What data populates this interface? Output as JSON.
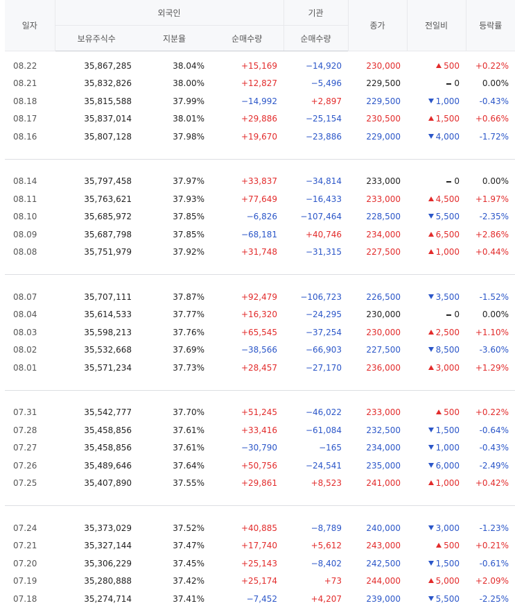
{
  "header": {
    "date": "일자",
    "foreign": "외국인",
    "institution": "기관",
    "holdings": "보유주식수",
    "ratio": "지분율",
    "foreign_net": "순매수량",
    "inst_net": "순매수량",
    "close": "종가",
    "change": "전일비",
    "rate": "등락률"
  },
  "colors": {
    "up": "#e22b2b",
    "down": "#2b56c8",
    "flat": "#222222"
  },
  "groups": [
    [
      {
        "date": "08.22",
        "holdings": "35,867,285",
        "ratio": "38.04%",
        "fnet": "+15,169",
        "inet": "−14,920",
        "close": "230,000",
        "dir": "up",
        "change": "500",
        "rate": "+0.22%"
      },
      {
        "date": "08.21",
        "holdings": "35,832,826",
        "ratio": "38.00%",
        "fnet": "+12,827",
        "inet": "−5,496",
        "close": "229,500",
        "dir": "flat",
        "change": "0",
        "rate": "0.00%"
      },
      {
        "date": "08.18",
        "holdings": "35,815,588",
        "ratio": "37.99%",
        "fnet": "−14,992",
        "inet": "+2,897",
        "close": "229,500",
        "dir": "dn",
        "change": "1,000",
        "rate": "-0.43%"
      },
      {
        "date": "08.17",
        "holdings": "35,837,014",
        "ratio": "38.01%",
        "fnet": "+29,886",
        "inet": "−25,154",
        "close": "230,500",
        "dir": "up",
        "change": "1,500",
        "rate": "+0.66%"
      },
      {
        "date": "08.16",
        "holdings": "35,807,128",
        "ratio": "37.98%",
        "fnet": "+19,670",
        "inet": "−23,886",
        "close": "229,000",
        "dir": "dn",
        "change": "4,000",
        "rate": "-1.72%"
      }
    ],
    [
      {
        "date": "08.14",
        "holdings": "35,797,458",
        "ratio": "37.97%",
        "fnet": "+33,837",
        "inet": "−34,814",
        "close": "233,000",
        "dir": "flat",
        "change": "0",
        "rate": "0.00%"
      },
      {
        "date": "08.11",
        "holdings": "35,763,621",
        "ratio": "37.93%",
        "fnet": "+77,649",
        "inet": "−16,433",
        "close": "233,000",
        "dir": "up",
        "change": "4,500",
        "rate": "+1.97%"
      },
      {
        "date": "08.10",
        "holdings": "35,685,972",
        "ratio": "37.85%",
        "fnet": "−6,826",
        "inet": "−107,464",
        "close": "228,500",
        "dir": "dn",
        "change": "5,500",
        "rate": "-2.35%"
      },
      {
        "date": "08.09",
        "holdings": "35,687,798",
        "ratio": "37.85%",
        "fnet": "−68,181",
        "inet": "+40,746",
        "close": "234,000",
        "dir": "up",
        "change": "6,500",
        "rate": "+2.86%"
      },
      {
        "date": "08.08",
        "holdings": "35,751,979",
        "ratio": "37.92%",
        "fnet": "+31,748",
        "inet": "−31,315",
        "close": "227,500",
        "dir": "up",
        "change": "1,000",
        "rate": "+0.44%"
      }
    ],
    [
      {
        "date": "08.07",
        "holdings": "35,707,111",
        "ratio": "37.87%",
        "fnet": "+92,479",
        "inet": "−106,723",
        "close": "226,500",
        "dir": "dn",
        "change": "3,500",
        "rate": "-1.52%"
      },
      {
        "date": "08.04",
        "holdings": "35,614,533",
        "ratio": "37.77%",
        "fnet": "+16,320",
        "inet": "−24,295",
        "close": "230,000",
        "dir": "flat",
        "change": "0",
        "rate": "0.00%"
      },
      {
        "date": "08.03",
        "holdings": "35,598,213",
        "ratio": "37.76%",
        "fnet": "+65,545",
        "inet": "−37,254",
        "close": "230,000",
        "dir": "up",
        "change": "2,500",
        "rate": "+1.10%"
      },
      {
        "date": "08.02",
        "holdings": "35,532,668",
        "ratio": "37.69%",
        "fnet": "−38,566",
        "inet": "−66,903",
        "close": "227,500",
        "dir": "dn",
        "change": "8,500",
        "rate": "-3.60%"
      },
      {
        "date": "08.01",
        "holdings": "35,571,234",
        "ratio": "37.73%",
        "fnet": "+28,457",
        "inet": "−27,170",
        "close": "236,000",
        "dir": "up",
        "change": "3,000",
        "rate": "+1.29%"
      }
    ],
    [
      {
        "date": "07.31",
        "holdings": "35,542,777",
        "ratio": "37.70%",
        "fnet": "+51,245",
        "inet": "−46,022",
        "close": "233,000",
        "dir": "up",
        "change": "500",
        "rate": "+0.22%"
      },
      {
        "date": "07.28",
        "holdings": "35,458,856",
        "ratio": "37.61%",
        "fnet": "+33,416",
        "inet": "−61,084",
        "close": "232,500",
        "dir": "dn",
        "change": "1,500",
        "rate": "-0.64%"
      },
      {
        "date": "07.27",
        "holdings": "35,458,856",
        "ratio": "37.61%",
        "fnet": "−30,790",
        "inet": "−165",
        "close": "234,000",
        "dir": "dn",
        "change": "1,000",
        "rate": "-0.43%"
      },
      {
        "date": "07.26",
        "holdings": "35,489,646",
        "ratio": "37.64%",
        "fnet": "+50,756",
        "inet": "−24,541",
        "close": "235,000",
        "dir": "dn",
        "change": "6,000",
        "rate": "-2.49%"
      },
      {
        "date": "07.25",
        "holdings": "35,407,890",
        "ratio": "37.55%",
        "fnet": "+29,861",
        "inet": "+8,523",
        "close": "241,000",
        "dir": "up",
        "change": "1,000",
        "rate": "+0.42%"
      }
    ],
    [
      {
        "date": "07.24",
        "holdings": "35,373,029",
        "ratio": "37.52%",
        "fnet": "+40,885",
        "inet": "−8,789",
        "close": "240,000",
        "dir": "dn",
        "change": "3,000",
        "rate": "-1.23%"
      },
      {
        "date": "07.21",
        "holdings": "35,327,144",
        "ratio": "37.47%",
        "fnet": "+17,740",
        "inet": "+5,612",
        "close": "243,000",
        "dir": "up",
        "change": "500",
        "rate": "+0.21%"
      },
      {
        "date": "07.20",
        "holdings": "35,306,229",
        "ratio": "37.45%",
        "fnet": "+25,143",
        "inet": "−8,402",
        "close": "242,500",
        "dir": "dn",
        "change": "1,500",
        "rate": "-0.61%"
      },
      {
        "date": "07.19",
        "holdings": "35,280,888",
        "ratio": "37.42%",
        "fnet": "+25,174",
        "inet": "+73",
        "close": "244,000",
        "dir": "up",
        "change": "5,000",
        "rate": "+2.09%"
      },
      {
        "date": "07.18",
        "holdings": "35,274,714",
        "ratio": "37.41%",
        "fnet": "−7,452",
        "inet": "+4,207",
        "close": "239,000",
        "dir": "dn",
        "change": "5,500",
        "rate": "-2.25%"
      }
    ]
  ]
}
